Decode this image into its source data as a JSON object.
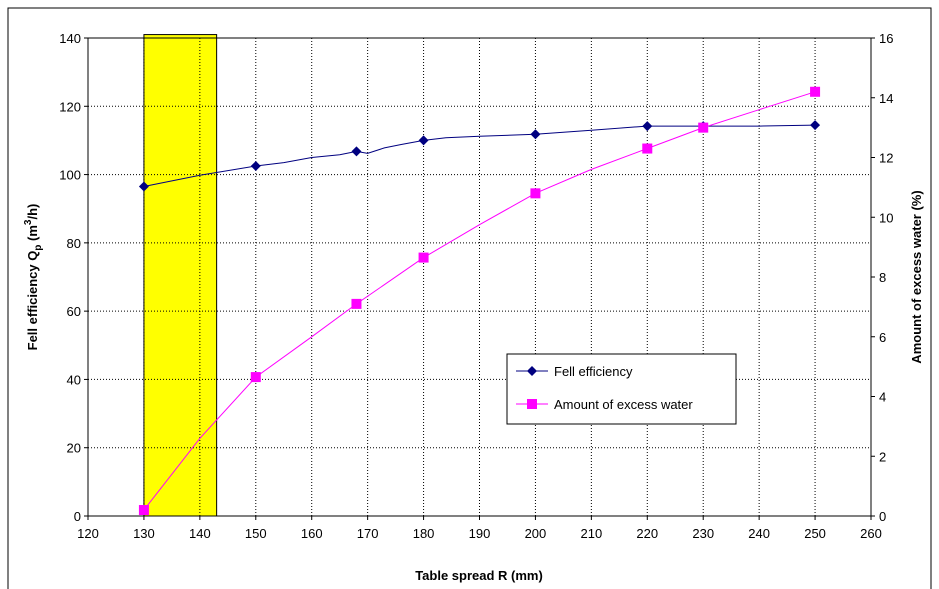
{
  "chart_data": {
    "type": "line",
    "title": "",
    "xlabel": "Table spread R (mm)",
    "ylabel": {
      "prefix": "Fell efficiency Q",
      "sub": "p",
      "mid": " (m",
      "sup": "3",
      "suffix": "/h)"
    },
    "y2label": "Amount of excess water (%)",
    "xlim": [
      120,
      260
    ],
    "xticks": [
      "120",
      "130",
      "140",
      "150",
      "160",
      "170",
      "180",
      "190",
      "200",
      "210",
      "220",
      "230",
      "240",
      "250",
      "260"
    ],
    "ylim": [
      0,
      140
    ],
    "yticks": [
      "0",
      "20",
      "40",
      "60",
      "80",
      "100",
      "120",
      "140"
    ],
    "y2lim": [
      0,
      16
    ],
    "y2ticks": [
      "0",
      "2",
      "4",
      "6",
      "8",
      "10",
      "12",
      "14",
      "16"
    ],
    "grid": "vertical and horizontal dotted",
    "highlight_region": {
      "x0": 130,
      "x1": 143,
      "color": "#FFFF00",
      "top": 141
    },
    "series": [
      {
        "name": "Fell efficiency",
        "axis": "left",
        "color": "#000080",
        "marker": "diamond",
        "markers": [
          [
            130,
            96.5
          ],
          [
            150,
            102.5
          ],
          [
            168,
            106.8
          ],
          [
            180,
            110
          ],
          [
            200,
            111.8
          ],
          [
            220,
            114.2
          ],
          [
            230,
            114.2
          ],
          [
            250,
            114.5
          ]
        ],
        "line": [
          [
            130,
            96.5
          ],
          [
            140,
            99.8
          ],
          [
            150,
            102.5
          ],
          [
            155,
            103.5
          ],
          [
            160,
            105
          ],
          [
            165,
            105.8
          ],
          [
            168,
            106.8
          ],
          [
            170,
            106.2
          ],
          [
            173,
            107.8
          ],
          [
            176,
            108.8
          ],
          [
            180,
            110
          ],
          [
            184,
            110.8
          ],
          [
            190,
            111.2
          ],
          [
            200,
            111.8
          ],
          [
            210,
            113
          ],
          [
            220,
            114.2
          ],
          [
            230,
            114.2
          ],
          [
            240,
            114.2
          ],
          [
            250,
            114.5
          ]
        ]
      },
      {
        "name": "Amount of excess water",
        "axis": "right",
        "color": "#FF00FF",
        "marker": "square",
        "markers": [
          [
            130,
            0.2
          ],
          [
            150,
            4.65
          ],
          [
            168,
            7.1
          ],
          [
            180,
            8.65
          ],
          [
            200,
            10.8
          ],
          [
            220,
            12.3
          ],
          [
            230,
            13.0
          ],
          [
            250,
            14.2
          ]
        ],
        "line": [
          [
            130,
            0.2
          ],
          [
            140,
            2.6
          ],
          [
            150,
            4.65
          ],
          [
            160,
            6.0
          ],
          [
            168,
            7.1
          ],
          [
            180,
            8.65
          ],
          [
            190,
            9.75
          ],
          [
            200,
            10.8
          ],
          [
            210,
            11.6
          ],
          [
            220,
            12.3
          ],
          [
            230,
            13.0
          ],
          [
            240,
            13.6
          ],
          [
            250,
            14.2
          ]
        ]
      }
    ],
    "legend": {
      "placement": "center-right",
      "entries": [
        "Fell efficiency",
        "Amount of excess water"
      ]
    }
  }
}
